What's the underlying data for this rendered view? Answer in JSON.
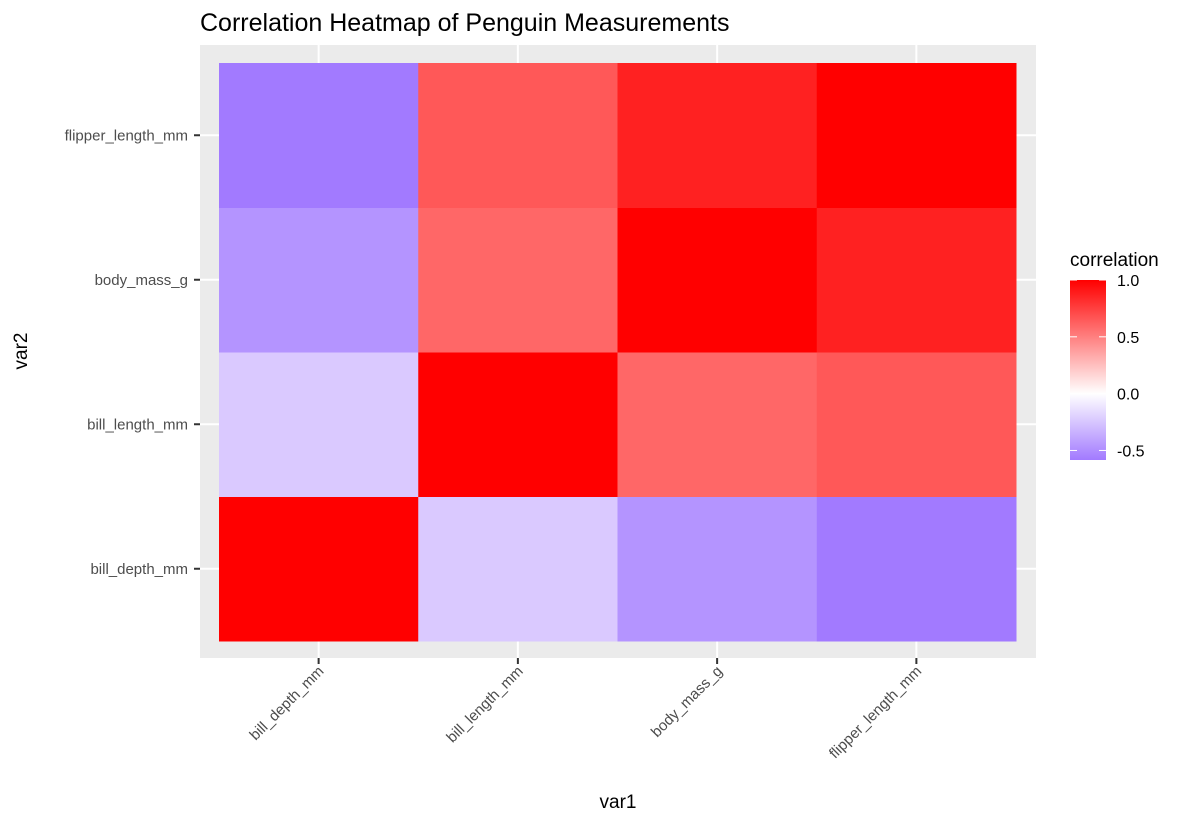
{
  "chart_data": {
    "type": "heatmap",
    "title": "Correlation Heatmap of Penguin Measurements",
    "xlabel": "var1",
    "ylabel": "var2",
    "x_categories": [
      "bill_depth_mm",
      "bill_length_mm",
      "body_mass_g",
      "flipper_length_mm"
    ],
    "y_categories": [
      "bill_depth_mm",
      "bill_length_mm",
      "body_mass_g",
      "flipper_length_mm"
    ],
    "matrix": [
      [
        1.0,
        -0.235,
        -0.472,
        -0.584
      ],
      [
        -0.235,
        1.0,
        0.595,
        0.656
      ],
      [
        -0.472,
        0.595,
        1.0,
        0.871
      ],
      [
        -0.584,
        0.656,
        0.871,
        1.0
      ]
    ],
    "legend": {
      "title": "correlation",
      "ticks": [
        1.0,
        0.5,
        0.0,
        -0.5
      ],
      "tick_labels": [
        "1.0",
        "0.5",
        "0.0",
        "-0.5"
      ],
      "range": [
        -0.584,
        1.0
      ],
      "placement": "right"
    },
    "colors": {
      "low": "#A27AFF",
      "mid": "#FFFFFF",
      "high": "#FF0000",
      "panel": "#EBEBEB",
      "grid": "#FFFFFF"
    }
  }
}
